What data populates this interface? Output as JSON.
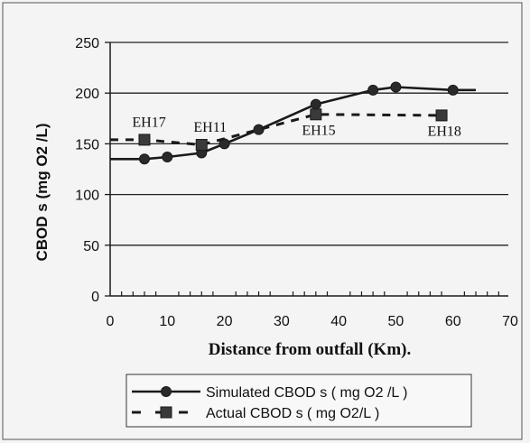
{
  "chart_data": {
    "type": "line",
    "ylabel": "CBOD s (mg O2 /L)",
    "xlabel": "Distance from outfall (Km).",
    "xlim": [
      0,
      70
    ],
    "ylim": [
      0,
      250
    ],
    "x_ticks": [
      "0",
      "10",
      "20",
      "30",
      "40",
      "50",
      "60",
      "70"
    ],
    "y_ticks": [
      "0",
      "50",
      "100",
      "150",
      "200",
      "250"
    ],
    "grid": "horizontal",
    "legend_position": "bottom",
    "series": [
      {
        "name": "Simulated CBOD s ( mg O2 /L )",
        "style": "solid-circle",
        "line": [
          [
            0,
            135
          ],
          [
            6,
            135
          ],
          [
            10,
            137
          ],
          [
            16,
            141
          ],
          [
            20,
            150
          ],
          [
            26,
            164
          ],
          [
            36,
            189
          ],
          [
            46,
            203
          ],
          [
            50,
            206
          ],
          [
            60,
            203
          ],
          [
            64,
            203
          ]
        ],
        "markers": [
          [
            6,
            135
          ],
          [
            10,
            137
          ],
          [
            16,
            141
          ],
          [
            20,
            150
          ],
          [
            26,
            164
          ],
          [
            36,
            189
          ],
          [
            46,
            203
          ],
          [
            50,
            206
          ],
          [
            60,
            203
          ]
        ]
      },
      {
        "name": "Actual CBOD s ( mg O2/L )",
        "style": "dashed-square",
        "line": [
          [
            0,
            154
          ],
          [
            6,
            154
          ],
          [
            16,
            149
          ],
          [
            36,
            179
          ],
          [
            58,
            178
          ]
        ],
        "markers": [
          [
            6,
            154
          ],
          [
            16,
            149
          ],
          [
            36,
            179
          ],
          [
            58,
            178
          ]
        ]
      }
    ],
    "annotations": [
      {
        "text": "EH17",
        "x": 6.8,
        "y": 167
      },
      {
        "text": "EH11",
        "x": 17.5,
        "y": 162
      },
      {
        "text": "EH15",
        "x": 36.5,
        "y": 159
      },
      {
        "text": "EH18",
        "x": 58.5,
        "y": 158
      }
    ]
  },
  "colors": {
    "line": "#1a1a1a",
    "background": "#f4f4f4",
    "grid": "#222222"
  }
}
